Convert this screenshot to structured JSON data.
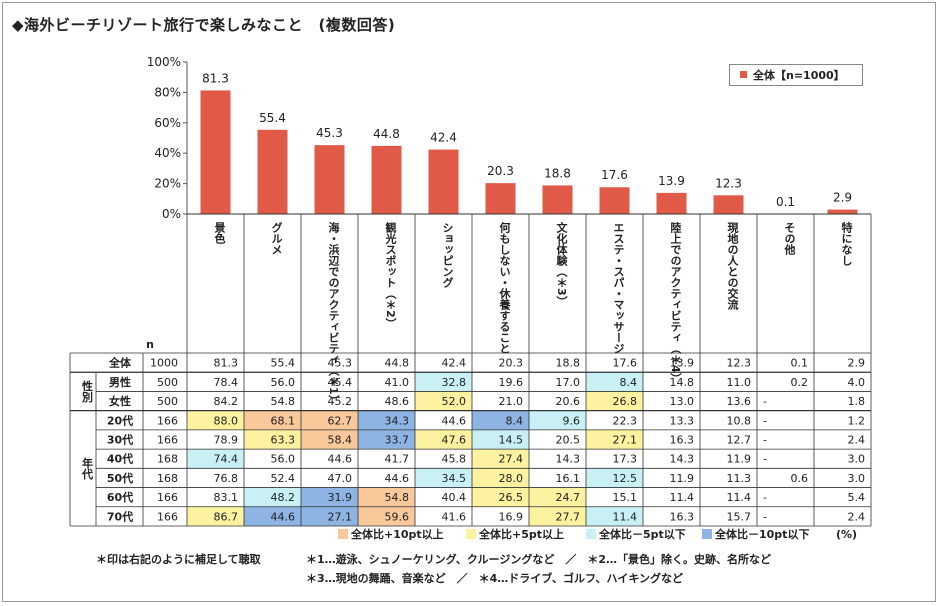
{
  "title": "◆海外ビーチリゾート旅行で楽しみなこと　(複数回答)",
  "colors": {
    "bar": "#e05a47",
    "hi10": "#f9c89b",
    "hi5": "#fdf2a0",
    "lo5": "#c9f0f5",
    "lo10": "#8db4e2"
  },
  "chart_data": {
    "type": "bar",
    "categories": [
      "景色",
      "グルメ",
      "海・浜辺でのアクティビティ（＊1）",
      "観光スポット（＊2）",
      "ショッピング",
      "何もしない・休養すること",
      "文化体験（＊3）",
      "エステ・スパ・マッサージ",
      "陸上でのアクティビティ（＊4）",
      "現地の人との交流",
      "その他",
      "特になし"
    ],
    "series": [
      {
        "name": "全体【n=1000】",
        "values": [
          81.3,
          55.4,
          45.3,
          44.8,
          42.4,
          20.3,
          18.8,
          17.6,
          13.9,
          12.3,
          0.1,
          2.9
        ]
      }
    ],
    "ylim": [
      0,
      100
    ],
    "yticks": [
      "0%",
      "20%",
      "40%",
      "60%",
      "80%",
      "100%"
    ],
    "legend": "top-right"
  },
  "table": {
    "n_header": "n",
    "group_labels": [
      {
        "label": "性別",
        "rows": [
          1,
          2
        ]
      },
      {
        "label": "年代",
        "rows": [
          3,
          8
        ]
      }
    ],
    "rows": [
      {
        "label": "全体",
        "n": "1000",
        "values": [
          "81.3",
          "55.4",
          "45.3",
          "44.8",
          "42.4",
          "20.3",
          "18.8",
          "17.6",
          "13.9",
          "12.3",
          "0.1",
          "2.9"
        ],
        "marks": [
          "",
          "",
          "",
          "",
          "",
          "",
          "",
          "",
          "",
          "",
          "",
          ""
        ]
      },
      {
        "label": "男性",
        "n": "500",
        "values": [
          "78.4",
          "56.0",
          "45.4",
          "41.0",
          "32.8",
          "19.6",
          "17.0",
          "8.4",
          "14.8",
          "11.0",
          "0.2",
          "4.0"
        ],
        "marks": [
          "",
          "",
          "",
          "",
          "lo5",
          "",
          "",
          "lo5",
          "",
          "",
          "",
          ""
        ]
      },
      {
        "label": "女性",
        "n": "500",
        "values": [
          "84.2",
          "54.8",
          "45.2",
          "48.6",
          "52.0",
          "21.0",
          "20.6",
          "26.8",
          "13.0",
          "13.6",
          "-",
          "1.8"
        ],
        "marks": [
          "",
          "",
          "",
          "",
          "hi5",
          "",
          "",
          "hi5",
          "",
          "",
          "",
          ""
        ]
      },
      {
        "label": "20代",
        "n": "166",
        "values": [
          "88.0",
          "68.1",
          "62.7",
          "34.3",
          "44.6",
          "8.4",
          "9.6",
          "22.3",
          "13.3",
          "10.8",
          "-",
          "1.2"
        ],
        "marks": [
          "hi5",
          "hi10",
          "hi10",
          "lo10",
          "",
          "lo10",
          "lo5",
          "",
          "",
          "",
          "",
          ""
        ]
      },
      {
        "label": "30代",
        "n": "166",
        "values": [
          "78.9",
          "63.3",
          "58.4",
          "33.7",
          "47.6",
          "14.5",
          "20.5",
          "27.1",
          "16.3",
          "12.7",
          "-",
          "2.4"
        ],
        "marks": [
          "",
          "hi5",
          "hi10",
          "lo10",
          "hi5",
          "lo5",
          "",
          "hi5",
          "",
          "",
          "",
          ""
        ]
      },
      {
        "label": "40代",
        "n": "168",
        "values": [
          "74.4",
          "56.0",
          "44.6",
          "41.7",
          "45.8",
          "27.4",
          "14.3",
          "17.3",
          "14.3",
          "11.9",
          "-",
          "3.0"
        ],
        "marks": [
          "lo5",
          "",
          "",
          "",
          "",
          "hi5",
          "",
          "",
          "",
          "",
          "",
          ""
        ]
      },
      {
        "label": "50代",
        "n": "168",
        "values": [
          "76.8",
          "52.4",
          "47.0",
          "44.6",
          "34.5",
          "28.0",
          "16.1",
          "12.5",
          "11.9",
          "11.3",
          "0.6",
          "3.0"
        ],
        "marks": [
          "",
          "",
          "",
          "",
          "lo5",
          "hi5",
          "",
          "lo5",
          "",
          "",
          "",
          ""
        ]
      },
      {
        "label": "60代",
        "n": "166",
        "values": [
          "83.1",
          "48.2",
          "31.9",
          "54.8",
          "40.4",
          "26.5",
          "24.7",
          "15.1",
          "11.4",
          "11.4",
          "-",
          "5.4"
        ],
        "marks": [
          "",
          "lo5",
          "lo10",
          "hi10",
          "",
          "hi5",
          "hi5",
          "",
          "",
          "",
          "",
          ""
        ]
      },
      {
        "label": "70代",
        "n": "166",
        "values": [
          "86.7",
          "44.6",
          "27.1",
          "59.6",
          "41.6",
          "16.9",
          "27.7",
          "11.4",
          "16.3",
          "15.7",
          "-",
          "2.4"
        ],
        "marks": [
          "hi5",
          "lo10",
          "lo10",
          "hi10",
          "",
          "",
          "hi5",
          "lo5",
          "",
          "",
          "",
          ""
        ]
      }
    ]
  },
  "legend": {
    "hi10": "全体比+10pt以上",
    "hi5": "全体比+5pt以上",
    "lo5": "全体比－5pt以下",
    "lo10": "全体比－10pt以下",
    "unit": "(%)"
  },
  "footnotes": {
    "note_main": "＊印は右記のように補足して聴取",
    "note1": "＊1…遊泳、シュノーケリング、クルージングなど　／　＊2…「景色」除く。史跡、名所など",
    "note2": "＊3…現地の舞踊、音楽など　／　＊4…ドライブ、ゴルフ、ハイキングなど"
  }
}
